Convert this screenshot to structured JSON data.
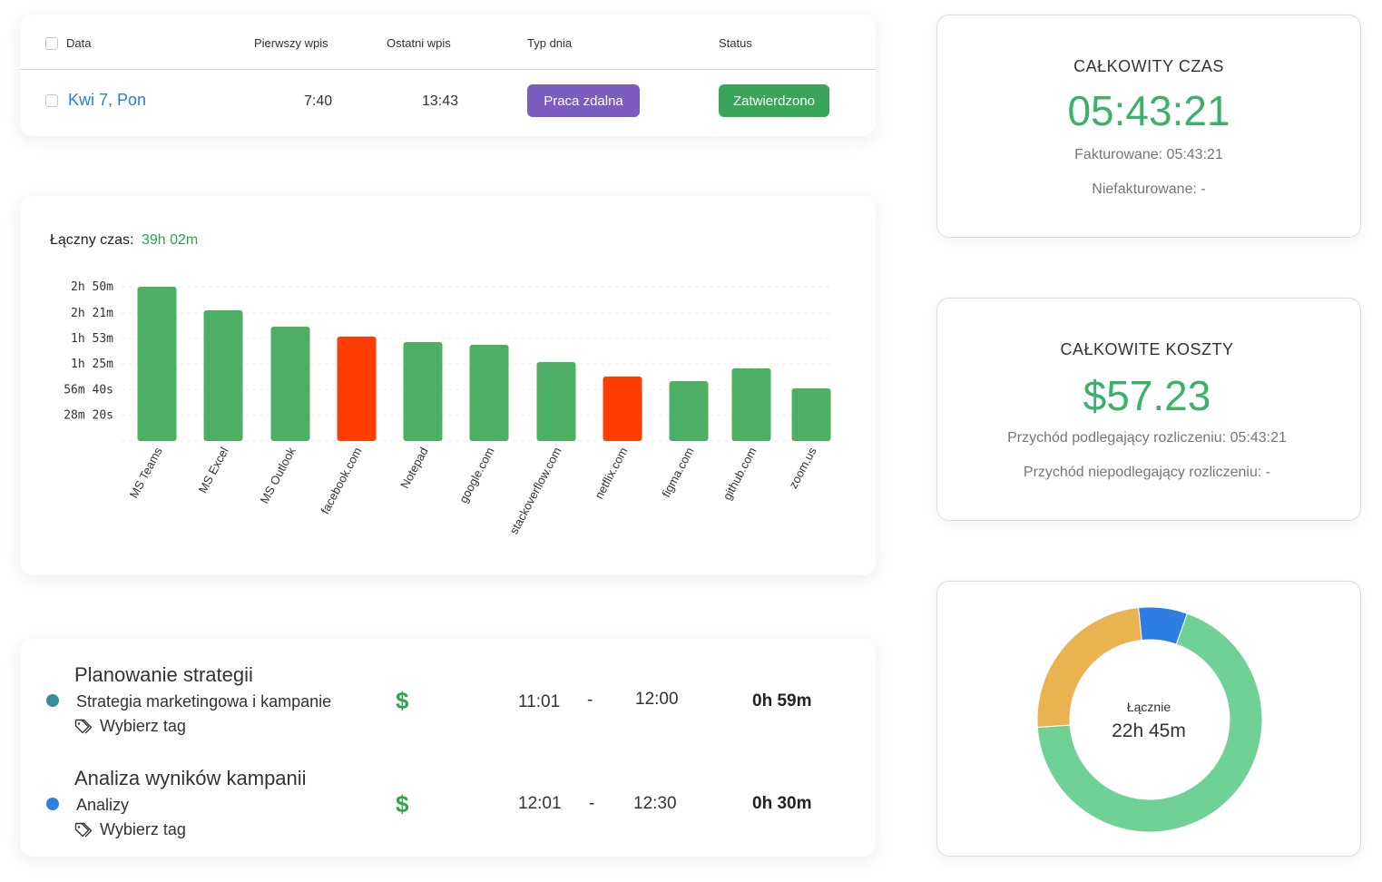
{
  "table": {
    "headers": {
      "date": "Data",
      "first_entry": "Pierwszy wpis",
      "last_entry": "Ostatni wpis",
      "day_type": "Typ dnia",
      "status": "Status"
    },
    "row": {
      "date": "Kwi 7, Pon",
      "first_entry": "7:40",
      "last_entry": "13:43",
      "day_type": "Praca zdalna",
      "status": "Zatwierdzono"
    },
    "colors": {
      "day_type": "#7c5cbf",
      "status": "#3aa55a"
    }
  },
  "chart_data": {
    "type": "bar",
    "title": "Łączny czas:",
    "total": "39h 02m",
    "categories": [
      "MS Teams",
      "MS Excel",
      "MS Outlook",
      "facebook.com",
      "Notepad",
      "google.com",
      "stackoverflow.com",
      "netflix.com",
      "figma.com",
      "github.com",
      "zoom.us"
    ],
    "values": [
      170,
      144,
      126,
      115,
      109,
      106,
      87,
      71,
      66,
      80,
      58
    ],
    "value_unit": "minutes",
    "y_ticks": [
      {
        "value": 28.33,
        "label": "28m 20s"
      },
      {
        "value": 56.67,
        "label": "56m 40s"
      },
      {
        "value": 85,
        "label": "1h 25m"
      },
      {
        "value": 113,
        "label": "1h 53m"
      },
      {
        "value": 141,
        "label": "2h 21m"
      },
      {
        "value": 170,
        "label": "2h 50m"
      }
    ],
    "ylim": [
      0,
      170
    ],
    "bar_colors": [
      "#4caf63",
      "#4caf63",
      "#4caf63",
      "#ff3d00",
      "#4caf63",
      "#4caf63",
      "#4caf63",
      "#ff3d00",
      "#4caf63",
      "#4caf63",
      "#4caf63"
    ],
    "grid": true
  },
  "entries": [
    {
      "title": "Planowanie strategii",
      "project": "Strategia marketingowa i kampanie",
      "tag": "Wybierz tag",
      "dot_color": "#3a8c99",
      "billable_symbol": "$",
      "start": "11:01",
      "separator": "-",
      "end": "12:00",
      "duration": "0h 59m"
    },
    {
      "title": "Analiza wyników kampanii",
      "project": "Analizy",
      "tag": "Wybierz tag",
      "dot_color": "#2d7fe0",
      "billable_symbol": "$",
      "start": "12:01",
      "separator": "-",
      "end": "12:30",
      "duration": "0h 30m"
    }
  ],
  "total_time": {
    "label": "CAŁKOWITY CZAS",
    "value": "05:43:21",
    "billable": "Fakturowane: 05:43:21",
    "non_billable": "Niefakturowane: -"
  },
  "total_costs": {
    "label": "CAŁKOWITE KOSZTY",
    "value": "$57.23",
    "billable": "Przychód podlegający rozliczeniu: 05:43:21",
    "non_billable": "Przychód niepodlegający rozliczeniu: -"
  },
  "donut": {
    "label": "Łącznie",
    "total": "22h 45m",
    "segments": [
      {
        "fraction": 0.07,
        "color": "#2e7de3"
      },
      {
        "fraction": 0.685,
        "color": "#6fd196"
      },
      {
        "fraction": 0.245,
        "color": "#ebb34f"
      }
    ]
  }
}
